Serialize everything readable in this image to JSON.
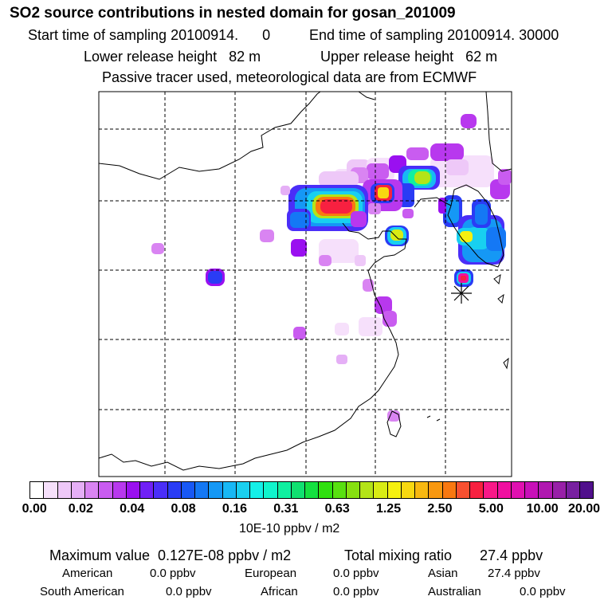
{
  "title": "SO2 source contributions in nested domain for gosan_201009",
  "sampling": {
    "start": "Start time of sampling 20100914.      0",
    "end": "End time of sampling 20100914. 30000"
  },
  "release": {
    "lower": "Lower release height   82 m",
    "upper": "Upper release height   62 m"
  },
  "note": "Passive tracer used, meteorological data are from ECMWF",
  "scale": {
    "labels": [
      "0.00",
      "0.02",
      "0.04",
      "0.08",
      "0.16",
      "0.31",
      "0.63",
      "1.25",
      "2.50",
      "5.00",
      "10.00",
      "20.00"
    ],
    "colors": [
      "#ffffff",
      "#f6e0fb",
      "#eec8f8",
      "#e5aff6",
      "#d984f2",
      "#c95cf0",
      "#b838ee",
      "#9a10f0",
      "#7020f6",
      "#4a2ef8",
      "#2a3cf5",
      "#1858f5",
      "#1478f5",
      "#1598f5",
      "#18b8f5",
      "#1ad0f0",
      "#14f0e8",
      "#10f4cc",
      "#10f0a0",
      "#10e070",
      "#14e040",
      "#30e010",
      "#58e010",
      "#86e010",
      "#b4e418",
      "#d8ec14",
      "#f5f010",
      "#f8d810",
      "#f8b810",
      "#f89810",
      "#f87810",
      "#f85030",
      "#f82040",
      "#f81888",
      "#f010a0",
      "#e010b0",
      "#c810b8",
      "#b018b0",
      "#9820a8",
      "#7820a0",
      "#50108c"
    ],
    "unit": "10E-10 ppbv / m2"
  },
  "summary": {
    "max": "Maximum value  0.127E-08 ppbv / m2",
    "total": "Total mixing ratio       27.4 ppbv"
  },
  "regions": [
    {
      "name": "American",
      "value": "0.0 ppbv"
    },
    {
      "name": "European",
      "value": "0.0 ppbv"
    },
    {
      "name": "Asian",
      "value": "27.4 ppbv"
    },
    {
      "name": "South American",
      "value": "0.0 ppbv"
    },
    {
      "name": "African",
      "value": "0.0 ppbv"
    },
    {
      "name": "Australian",
      "value": "0.0 ppbv"
    }
  ]
}
